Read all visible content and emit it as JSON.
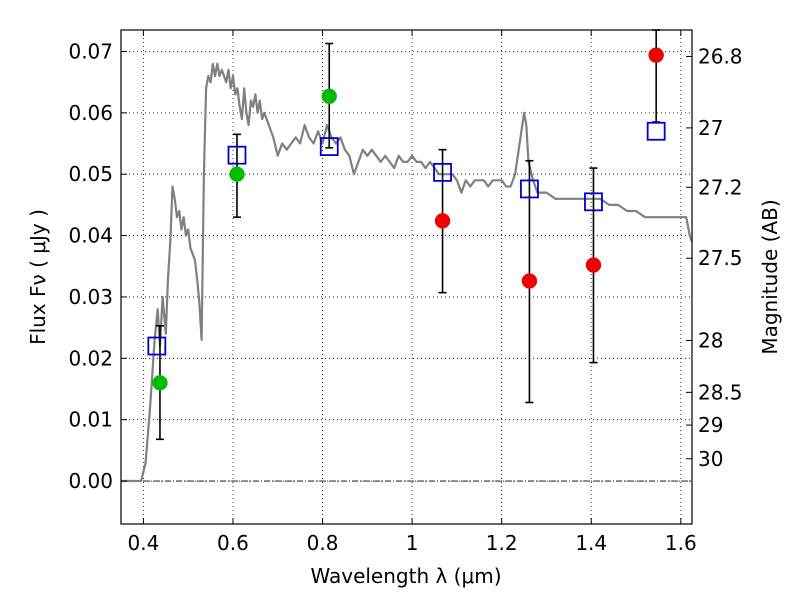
{
  "chart_data": {
    "type": "scatter",
    "xlabel": "Wavelength  λ (μm)",
    "ylabel": "Flux  Fν  ( μJy )",
    "ylabel_right": "Magnitude (AB)",
    "xlim": [
      0.35,
      1.625
    ],
    "ylim": [
      -0.007,
      0.0735
    ],
    "x_ticks": [
      0.4,
      0.6,
      0.8,
      1.0,
      1.2,
      1.4,
      1.6
    ],
    "x_tick_labels": [
      "0.4",
      "0.6",
      "0.8",
      "1",
      "1.2",
      "1.4",
      "1.6"
    ],
    "y_ticks": [
      0.0,
      0.01,
      0.02,
      0.03,
      0.04,
      0.05,
      0.06,
      0.07
    ],
    "y_tick_labels": [
      "0.00",
      "0.01",
      "0.02",
      "0.03",
      "0.04",
      "0.05",
      "0.06",
      "0.07"
    ],
    "mag_ticks": [
      26.8,
      27,
      27.2,
      27.5,
      28,
      28.5,
      29,
      30
    ],
    "mag_tick_labels": [
      "26.8",
      "27",
      "27.2",
      "27.5",
      "28",
      "28.5",
      "29",
      "30"
    ],
    "grid": true,
    "colors": {
      "model": "#808080",
      "green": "#00bb00",
      "red": "#ee0000",
      "blue": "#0000cc",
      "errorbar": "#000000",
      "zero_line": "#000000"
    },
    "series": [
      {
        "kind": "line",
        "points": [
          [
            0.35,
            0.0
          ],
          [
            0.395,
            0.0
          ],
          [
            0.405,
            0.003
          ],
          [
            0.415,
            0.012
          ],
          [
            0.425,
            0.023
          ],
          [
            0.432,
            0.028
          ],
          [
            0.437,
            0.022
          ],
          [
            0.443,
            0.03
          ],
          [
            0.45,
            0.024
          ],
          [
            0.455,
            0.033
          ],
          [
            0.46,
            0.039
          ],
          [
            0.465,
            0.048
          ],
          [
            0.47,
            0.046
          ],
          [
            0.475,
            0.043
          ],
          [
            0.48,
            0.044
          ],
          [
            0.485,
            0.041
          ],
          [
            0.49,
            0.043
          ],
          [
            0.495,
            0.04
          ],
          [
            0.5,
            0.041
          ],
          [
            0.505,
            0.038
          ],
          [
            0.51,
            0.037
          ],
          [
            0.515,
            0.036
          ],
          [
            0.52,
            0.033
          ],
          [
            0.525,
            0.029
          ],
          [
            0.53,
            0.023
          ],
          [
            0.535,
            0.05
          ],
          [
            0.54,
            0.064
          ],
          [
            0.545,
            0.066
          ],
          [
            0.55,
            0.065
          ],
          [
            0.555,
            0.068
          ],
          [
            0.56,
            0.066
          ],
          [
            0.565,
            0.068
          ],
          [
            0.57,
            0.066
          ],
          [
            0.575,
            0.067
          ],
          [
            0.58,
            0.066
          ],
          [
            0.585,
            0.065
          ],
          [
            0.59,
            0.067
          ],
          [
            0.595,
            0.064
          ],
          [
            0.6,
            0.066
          ],
          [
            0.605,
            0.063
          ],
          [
            0.61,
            0.064
          ],
          [
            0.615,
            0.061
          ],
          [
            0.62,
            0.059
          ],
          [
            0.625,
            0.064
          ],
          [
            0.63,
            0.06
          ],
          [
            0.635,
            0.058
          ],
          [
            0.64,
            0.062
          ],
          [
            0.645,
            0.061
          ],
          [
            0.65,
            0.063
          ],
          [
            0.655,
            0.06
          ],
          [
            0.66,
            0.062
          ],
          [
            0.665,
            0.059
          ],
          [
            0.67,
            0.06
          ],
          [
            0.68,
            0.058
          ],
          [
            0.69,
            0.056
          ],
          [
            0.7,
            0.053
          ],
          [
            0.71,
            0.055
          ],
          [
            0.72,
            0.054
          ],
          [
            0.73,
            0.055
          ],
          [
            0.74,
            0.056
          ],
          [
            0.75,
            0.055
          ],
          [
            0.76,
            0.058
          ],
          [
            0.77,
            0.056
          ],
          [
            0.78,
            0.055
          ],
          [
            0.79,
            0.057
          ],
          [
            0.8,
            0.055
          ],
          [
            0.81,
            0.058
          ],
          [
            0.82,
            0.056
          ],
          [
            0.83,
            0.055
          ],
          [
            0.84,
            0.056
          ],
          [
            0.85,
            0.054
          ],
          [
            0.86,
            0.053
          ],
          [
            0.87,
            0.05
          ],
          [
            0.88,
            0.052
          ],
          [
            0.89,
            0.054
          ],
          [
            0.9,
            0.053
          ],
          [
            0.91,
            0.054
          ],
          [
            0.92,
            0.053
          ],
          [
            0.93,
            0.052
          ],
          [
            0.94,
            0.053
          ],
          [
            0.95,
            0.052
          ],
          [
            0.96,
            0.051
          ],
          [
            0.97,
            0.053
          ],
          [
            0.98,
            0.052
          ],
          [
            0.99,
            0.052
          ],
          [
            1.0,
            0.053
          ],
          [
            1.01,
            0.052
          ],
          [
            1.02,
            0.052
          ],
          [
            1.03,
            0.051
          ],
          [
            1.04,
            0.052
          ],
          [
            1.05,
            0.051
          ],
          [
            1.06,
            0.05
          ],
          [
            1.07,
            0.05
          ],
          [
            1.08,
            0.05
          ],
          [
            1.09,
            0.05
          ],
          [
            1.1,
            0.049
          ],
          [
            1.11,
            0.047
          ],
          [
            1.12,
            0.049
          ],
          [
            1.13,
            0.048
          ],
          [
            1.14,
            0.049
          ],
          [
            1.15,
            0.049
          ],
          [
            1.16,
            0.049
          ],
          [
            1.17,
            0.048
          ],
          [
            1.18,
            0.049
          ],
          [
            1.19,
            0.049
          ],
          [
            1.2,
            0.049
          ],
          [
            1.21,
            0.048
          ],
          [
            1.22,
            0.048
          ],
          [
            1.23,
            0.05
          ],
          [
            1.24,
            0.055
          ],
          [
            1.25,
            0.06
          ],
          [
            1.255,
            0.058
          ],
          [
            1.26,
            0.052
          ],
          [
            1.27,
            0.049
          ],
          [
            1.28,
            0.047
          ],
          [
            1.3,
            0.047
          ],
          [
            1.32,
            0.046
          ],
          [
            1.34,
            0.046
          ],
          [
            1.36,
            0.046
          ],
          [
            1.38,
            0.046
          ],
          [
            1.4,
            0.046
          ],
          [
            1.42,
            0.046
          ],
          [
            1.44,
            0.045
          ],
          [
            1.46,
            0.045
          ],
          [
            1.48,
            0.044
          ],
          [
            1.5,
            0.044
          ],
          [
            1.52,
            0.043
          ],
          [
            1.54,
            0.043
          ],
          [
            1.56,
            0.043
          ],
          [
            1.58,
            0.043
          ],
          [
            1.6,
            0.043
          ],
          [
            1.612,
            0.043
          ],
          [
            1.62,
            0.04
          ],
          [
            1.625,
            0.039
          ]
        ]
      },
      {
        "kind": "errorbars",
        "points": [
          {
            "x": 0.437,
            "low": 0.0068,
            "high": 0.0253
          },
          {
            "x": 0.609,
            "low": 0.043,
            "high": 0.0565
          },
          {
            "x": 0.815,
            "low": 0.0543,
            "high": 0.0713
          },
          {
            "x": 1.068,
            "low": 0.0307,
            "high": 0.054
          },
          {
            "x": 1.262,
            "low": 0.0128,
            "high": 0.0522
          },
          {
            "x": 1.405,
            "low": 0.0193,
            "high": 0.051
          },
          {
            "x": 1.545,
            "low": 0.0585,
            "high": 0.0735
          }
        ]
      },
      {
        "kind": "points",
        "marker": "circle",
        "color_key": "green",
        "points": [
          [
            0.437,
            0.016
          ],
          [
            0.609,
            0.05
          ],
          [
            0.815,
            0.0627
          ]
        ]
      },
      {
        "kind": "points",
        "marker": "circle",
        "color_key": "red",
        "points": [
          [
            1.068,
            0.0424
          ],
          [
            1.262,
            0.0326
          ],
          [
            1.405,
            0.0352
          ],
          [
            1.545,
            0.0694
          ]
        ]
      },
      {
        "kind": "points",
        "marker": "open-square",
        "color_key": "blue",
        "points": [
          [
            0.43,
            0.022
          ],
          [
            0.609,
            0.0531
          ],
          [
            0.815,
            0.0545
          ],
          [
            1.068,
            0.0503
          ],
          [
            1.262,
            0.0476
          ],
          [
            1.405,
            0.0455
          ],
          [
            1.545,
            0.057
          ]
        ]
      }
    ]
  }
}
